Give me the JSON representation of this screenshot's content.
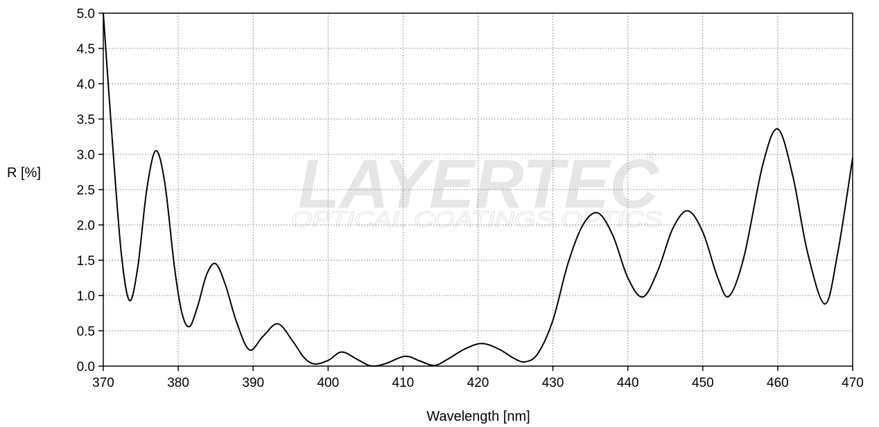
{
  "chart_data": {
    "type": "line",
    "title": "",
    "xlabel": "Wavelength [nm]",
    "ylabel": "R [%]",
    "xlim": [
      370,
      470
    ],
    "ylim": [
      0,
      5
    ],
    "grid": true,
    "x_ticks": [
      "370",
      "380",
      "390",
      "400",
      "410",
      "420",
      "430",
      "440",
      "450",
      "460",
      "470"
    ],
    "y_ticks": [
      "0.0",
      "0.5",
      "1.0",
      "1.5",
      "2.0",
      "2.5",
      "3.0",
      "3.5",
      "4.0",
      "4.5",
      "5.0"
    ],
    "series": [
      {
        "x": [
          370,
          371.2,
          372.4,
          373.5,
          374.6,
          375.8,
          377,
          378.2,
          379.5,
          380.5,
          381.5,
          382.6,
          383.8,
          385,
          386.3,
          387.8,
          389.5,
          391.3,
          393.3,
          395.3,
          396.8,
          398.2,
          400,
          401.8,
          403.8,
          405.2,
          406.2,
          407.8,
          410.3,
          412.3,
          414.2,
          416,
          418.2,
          420.5,
          422.8,
          424.8,
          426.3,
          428,
          430,
          432,
          434,
          436,
          438,
          440,
          442,
          444,
          446,
          448,
          450,
          452,
          453.5,
          455.5,
          458,
          460,
          462,
          464,
          466.3,
          468,
          470
        ],
        "y": [
          5.0,
          3.2,
          1.6,
          0.93,
          1.4,
          2.5,
          3.05,
          2.6,
          1.4,
          0.75,
          0.56,
          0.85,
          1.3,
          1.45,
          1.15,
          0.62,
          0.23,
          0.42,
          0.6,
          0.35,
          0.12,
          0.03,
          0.08,
          0.2,
          0.1,
          0.02,
          0.0,
          0.04,
          0.14,
          0.07,
          0.01,
          0.1,
          0.24,
          0.32,
          0.24,
          0.11,
          0.06,
          0.18,
          0.65,
          1.45,
          2.0,
          2.17,
          1.85,
          1.25,
          0.98,
          1.35,
          1.95,
          2.2,
          1.9,
          1.25,
          0.99,
          1.55,
          2.85,
          3.36,
          2.7,
          1.6,
          0.88,
          1.6,
          2.95
        ],
        "color": "#000000"
      }
    ]
  },
  "watermark": {
    "logo_text": "LAYERTEC",
    "sub_text": "OPTICAL COATINGS  OPTICS",
    "registered": "®"
  },
  "colors": {
    "line": "#000000",
    "grid": "#9a9a9a",
    "axis": "#000000",
    "watermark": "#e6e6e6"
  }
}
